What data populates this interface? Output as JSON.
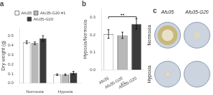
{
  "chart_data": [
    {
      "type": "bar",
      "title": "a",
      "categories": [
        "Normoxia",
        "Hypoxia"
      ],
      "series": [
        {
          "name": "Afu35",
          "color": "white",
          "values": [
            0.43,
            0.09
          ],
          "errors": [
            0.015,
            0.008
          ]
        },
        {
          "name": "Afu35-G20 #1",
          "color": "#b8b8b8",
          "values": [
            0.42,
            0.09
          ],
          "errors": [
            0.015,
            0.008
          ]
        },
        {
          "name": "Afu35-G20",
          "color": "#3a3a3a",
          "values": [
            0.47,
            0.11
          ],
          "errors": [
            0.03,
            0.015
          ]
        }
      ],
      "y_label": "Dry weight (g)",
      "ylim": [
        0.0,
        0.58
      ],
      "yticks": [
        {
          "value": 0,
          "label": "0.0"
        },
        0.1,
        0.2,
        0.3,
        0.4,
        0.5
      ],
      "grid": false,
      "legend": "top"
    },
    {
      "type": "bar",
      "title": "b",
      "categories": [
        "Afu35",
        "Afu35-G20\n#1",
        "Afu35-G20"
      ],
      "values": [
        0.205,
        0.198,
        0.263
      ],
      "errors": [
        0.025,
        0.018,
        0.03
      ],
      "colors": [
        "white",
        "#b8b8b8",
        "#3a3a3a"
      ],
      "y_label": "Hypoxia/Normoxia",
      "ylim": [
        0.0,
        0.35
      ],
      "yticks": [
        {
          "value": 0,
          "label": "0.0"
        },
        0.1,
        0.2,
        0.3
      ],
      "grid": false,
      "annotations": [
        {
          "text": "**",
          "from": "Afu35",
          "to": "Afu35-G20",
          "y": 0.305
        }
      ]
    },
    {
      "type": "dishes",
      "title": "c",
      "columns": [
        "Afu35",
        "Afu35-G20"
      ],
      "rows": [
        "Normoxia",
        "Hypoxia"
      ],
      "xlim": [
        0,
        2
      ],
      "ylim": [
        0,
        2
      ],
      "tick_labels": false,
      "dish_radius": 0.44,
      "dish_color": "#ccd4e0",
      "dish_edge_color": "#8899aa",
      "colonies": {
        "radii": [
          0.34,
          0.1,
          0.12,
          0.045
        ],
        "colors": [
          "#c8b87a",
          "#e0daba",
          "#d5d0c8",
          "#d8d4cc"
        ],
        "inner_radii": [
          0.2,
          null,
          0.06,
          null
        ],
        "inner_colors": [
          "#e8e0c8",
          null,
          "#e0dcd4",
          null
        ]
      }
    }
  ]
}
